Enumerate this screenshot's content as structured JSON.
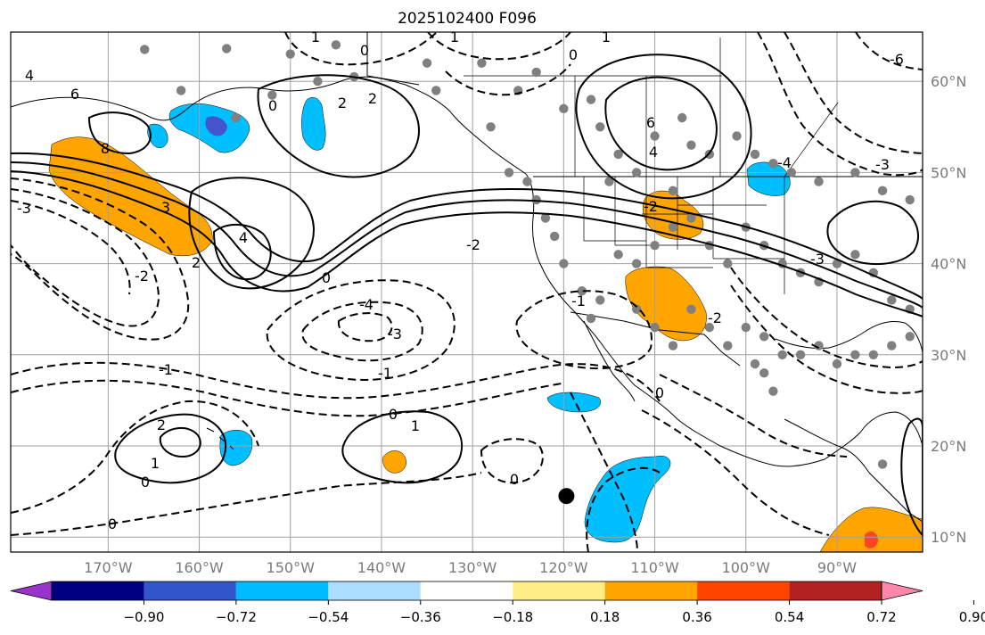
{
  "title": "2025102400 F096",
  "map": {
    "lon_ticks": [
      "170°W",
      "160°W",
      "150°W",
      "140°W",
      "130°W",
      "120°W",
      "110°W",
      "100°W",
      "90°W"
    ],
    "lat_ticks": [
      "60°N",
      "50°N",
      "40°N",
      "30°N",
      "20°N",
      "10°N"
    ],
    "gridlines": true,
    "contour_labels": [
      "4",
      "6",
      "8",
      "3",
      "2",
      "1",
      "0",
      "-1",
      "-2",
      "-3",
      "-4",
      "-6"
    ],
    "marker": {
      "lon": -119.7,
      "lat": 14.5,
      "color": "#000000"
    }
  },
  "colorbar": {
    "tick_labels": [
      "−0.90",
      "−0.72",
      "−0.54",
      "−0.36",
      "−0.18",
      "0.18",
      "0.36",
      "0.54",
      "0.72",
      "0.90"
    ],
    "colors": [
      "#9933cc",
      "#000080",
      "#3355cc",
      "#00bbff",
      "#aaddff",
      "#ffffff",
      "#ffee88",
      "#ffa500",
      "#ff4400",
      "#b22222",
      "#ff88aa"
    ]
  },
  "fill_colors": {
    "orange": "#ffa500",
    "cyan": "#00bfff",
    "blue": "#4455cc",
    "red": "#ff4422"
  },
  "station_color": "#808080"
}
